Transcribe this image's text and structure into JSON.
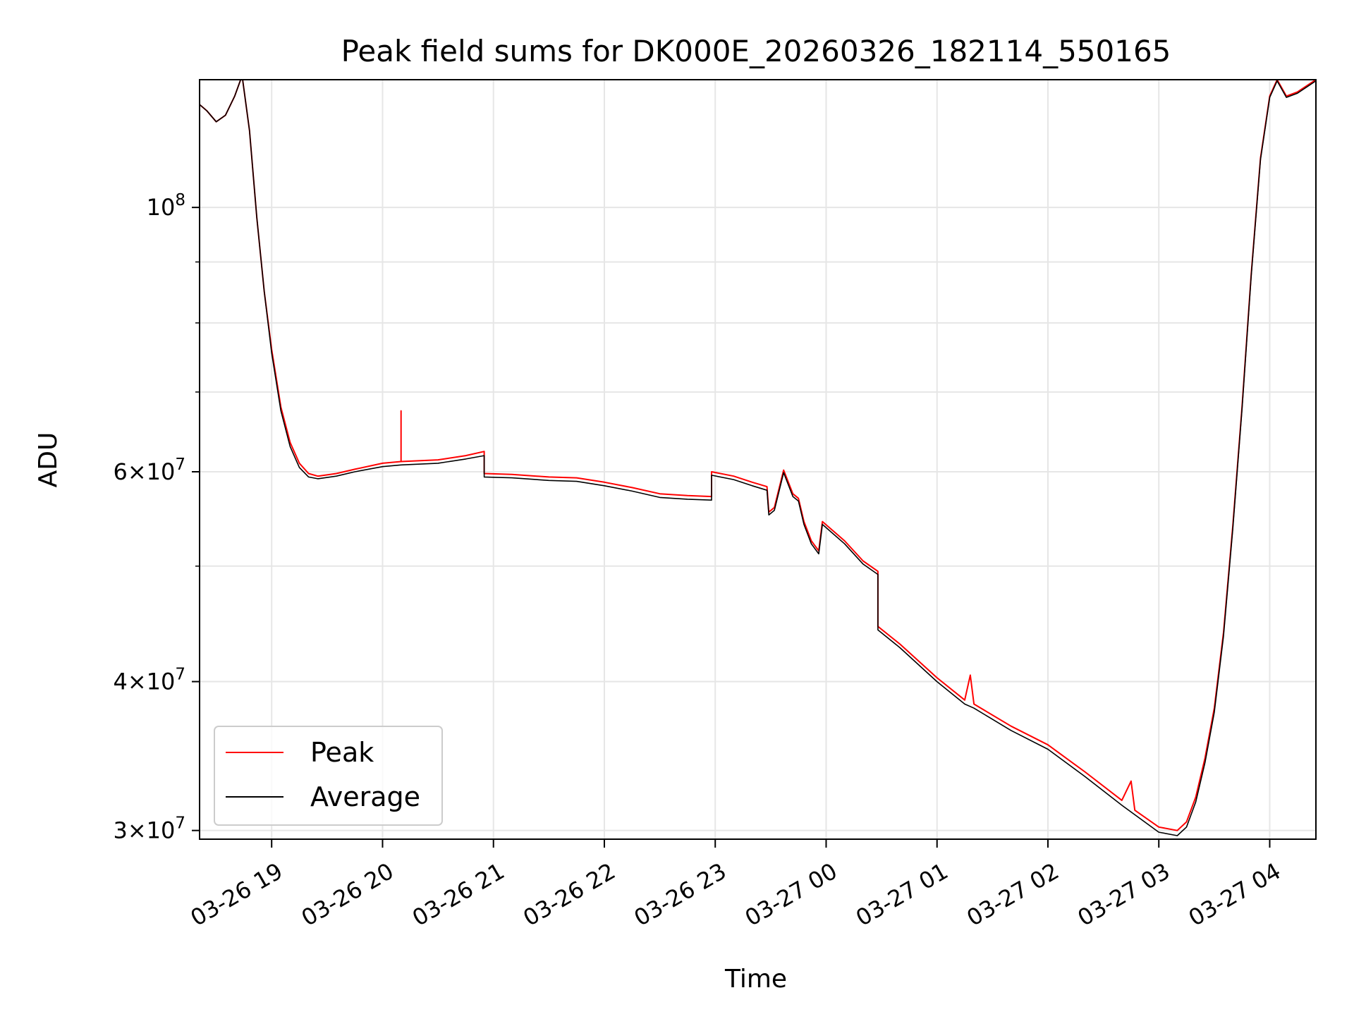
{
  "chart_data": {
    "type": "line",
    "title": "Peak field sums for DK000E_20260326_182114_550165",
    "xlabel": "Time",
    "ylabel": "ADU",
    "yscale": "log",
    "grid": true,
    "legend_position": "lower-left",
    "xlim": [
      "2026-03-26 18:21",
      "2026-03-27 04:25"
    ],
    "ylim": [
      29500000,
      128000000
    ],
    "x_ticks": [
      {
        "value": "2026-03-26 19:00",
        "label": "03-26 19"
      },
      {
        "value": "2026-03-26 20:00",
        "label": "03-26 20"
      },
      {
        "value": "2026-03-26 21:00",
        "label": "03-26 21"
      },
      {
        "value": "2026-03-26 22:00",
        "label": "03-26 22"
      },
      {
        "value": "2026-03-26 23:00",
        "label": "03-26 23"
      },
      {
        "value": "2026-03-27 00:00",
        "label": "03-27 00"
      },
      {
        "value": "2026-03-27 01:00",
        "label": "03-27 01"
      },
      {
        "value": "2026-03-27 02:00",
        "label": "03-27 02"
      },
      {
        "value": "2026-03-27 03:00",
        "label": "03-27 03"
      },
      {
        "value": "2026-03-27 04:00",
        "label": "03-27 04"
      }
    ],
    "y_ticks": [
      {
        "value": 30000000,
        "label_base": "3×10",
        "label_exp": "7"
      },
      {
        "value": 40000000,
        "label_base": "4×10",
        "label_exp": "7"
      },
      {
        "value": 60000000,
        "label_base": "6×10",
        "label_exp": "7"
      },
      {
        "value": 100000000,
        "label_base": "10",
        "label_exp": "8"
      }
    ],
    "y_minor_ticks": [
      50000000,
      70000000,
      80000000,
      90000000
    ],
    "series": [
      {
        "name": "Peak",
        "color": "#ff0000",
        "points": [
          [
            "2026-03-26 18:21",
            122000000
          ],
          [
            "2026-03-26 18:25",
            120500000
          ],
          [
            "2026-03-26 18:30",
            118000000
          ],
          [
            "2026-03-26 18:35",
            119500000
          ],
          [
            "2026-03-26 18:40",
            124000000
          ],
          [
            "2026-03-26 18:44",
            129000000
          ],
          [
            "2026-03-26 18:48",
            116000000
          ],
          [
            "2026-03-26 18:52",
            98000000
          ],
          [
            "2026-03-26 18:56",
            85000000
          ],
          [
            "2026-03-26 19:00",
            76000000
          ],
          [
            "2026-03-26 19:05",
            68000000
          ],
          [
            "2026-03-26 19:10",
            63500000
          ],
          [
            "2026-03-26 19:15",
            61000000
          ],
          [
            "2026-03-26 19:20",
            59800000
          ],
          [
            "2026-03-26 19:25",
            59500000
          ],
          [
            "2026-03-26 19:35",
            59800000
          ],
          [
            "2026-03-26 19:45",
            60300000
          ],
          [
            "2026-03-26 20:00",
            61000000
          ],
          [
            "2026-03-26 20:10",
            61200000
          ],
          [
            "2026-03-26 20:10",
            67500000
          ],
          [
            "2026-03-26 20:10",
            61200000
          ],
          [
            "2026-03-26 20:30",
            61400000
          ],
          [
            "2026-03-26 20:45",
            61900000
          ],
          [
            "2026-03-26 20:55",
            62400000
          ],
          [
            "2026-03-26 20:55",
            59800000
          ],
          [
            "2026-03-26 21:10",
            59700000
          ],
          [
            "2026-03-26 21:30",
            59400000
          ],
          [
            "2026-03-26 21:45",
            59300000
          ],
          [
            "2026-03-26 22:00",
            58800000
          ],
          [
            "2026-03-26 22:15",
            58200000
          ],
          [
            "2026-03-26 22:30",
            57500000
          ],
          [
            "2026-03-26 22:45",
            57300000
          ],
          [
            "2026-03-26 22:58",
            57200000
          ],
          [
            "2026-03-26 22:58",
            60000000
          ],
          [
            "2026-03-26 23:10",
            59500000
          ],
          [
            "2026-03-26 23:20",
            58800000
          ],
          [
            "2026-03-26 23:28",
            58300000
          ],
          [
            "2026-03-26 23:29",
            55500000
          ],
          [
            "2026-03-26 23:32",
            56000000
          ],
          [
            "2026-03-26 23:37",
            60200000
          ],
          [
            "2026-03-26 23:42",
            57500000
          ],
          [
            "2026-03-26 23:45",
            57000000
          ],
          [
            "2026-03-26 23:48",
            54500000
          ],
          [
            "2026-03-26 23:52",
            52500000
          ],
          [
            "2026-03-26 23:56",
            51500000
          ],
          [
            "2026-03-26 23:58",
            54500000
          ],
          [
            "2026-03-27 00:10",
            52500000
          ],
          [
            "2026-03-27 00:20",
            50500000
          ],
          [
            "2026-03-27 00:28",
            49500000
          ],
          [
            "2026-03-27 00:28",
            44500000
          ],
          [
            "2026-03-27 00:40",
            43000000
          ],
          [
            "2026-03-27 01:00",
            40300000
          ],
          [
            "2026-03-27 01:15",
            38600000
          ],
          [
            "2026-03-27 01:18",
            40500000
          ],
          [
            "2026-03-27 01:20",
            38300000
          ],
          [
            "2026-03-27 01:40",
            36700000
          ],
          [
            "2026-03-27 02:00",
            35400000
          ],
          [
            "2026-03-27 02:20",
            33600000
          ],
          [
            "2026-03-27 02:40",
            31800000
          ],
          [
            "2026-03-27 02:45",
            33000000
          ],
          [
            "2026-03-27 02:47",
            31200000
          ],
          [
            "2026-03-27 03:00",
            30200000
          ],
          [
            "2026-03-27 03:10",
            30000000
          ],
          [
            "2026-03-27 03:15",
            30500000
          ],
          [
            "2026-03-27 03:20",
            32000000
          ],
          [
            "2026-03-27 03:25",
            34500000
          ],
          [
            "2026-03-27 03:30",
            38000000
          ],
          [
            "2026-03-27 03:35",
            44000000
          ],
          [
            "2026-03-27 03:40",
            54000000
          ],
          [
            "2026-03-27 03:45",
            68000000
          ],
          [
            "2026-03-27 03:50",
            88000000
          ],
          [
            "2026-03-27 03:55",
            110000000
          ],
          [
            "2026-03-27 04:00",
            124000000
          ],
          [
            "2026-03-27 04:04",
            128000000
          ],
          [
            "2026-03-27 04:09",
            124000000
          ],
          [
            "2026-03-27 04:15",
            125000000
          ],
          [
            "2026-03-27 04:20",
            126500000
          ],
          [
            "2026-03-27 04:25",
            128000000
          ]
        ]
      },
      {
        "name": "Average",
        "color": "#000000",
        "points": [
          [
            "2026-03-26 18:21",
            122000000
          ],
          [
            "2026-03-26 18:25",
            120500000
          ],
          [
            "2026-03-26 18:30",
            118000000
          ],
          [
            "2026-03-26 18:35",
            119500000
          ],
          [
            "2026-03-26 18:40",
            124000000
          ],
          [
            "2026-03-26 18:44",
            129000000
          ],
          [
            "2026-03-26 18:48",
            116000000
          ],
          [
            "2026-03-26 18:52",
            98000000
          ],
          [
            "2026-03-26 18:56",
            85000000
          ],
          [
            "2026-03-26 19:00",
            75500000
          ],
          [
            "2026-03-26 19:05",
            67500000
          ],
          [
            "2026-03-26 19:10",
            63000000
          ],
          [
            "2026-03-26 19:15",
            60500000
          ],
          [
            "2026-03-26 19:20",
            59400000
          ],
          [
            "2026-03-26 19:25",
            59200000
          ],
          [
            "2026-03-26 19:35",
            59500000
          ],
          [
            "2026-03-26 19:45",
            60000000
          ],
          [
            "2026-03-26 20:00",
            60600000
          ],
          [
            "2026-03-26 20:10",
            60800000
          ],
          [
            "2026-03-26 20:30",
            61000000
          ],
          [
            "2026-03-26 20:45",
            61500000
          ],
          [
            "2026-03-26 20:55",
            61900000
          ],
          [
            "2026-03-26 20:55",
            59400000
          ],
          [
            "2026-03-26 21:10",
            59300000
          ],
          [
            "2026-03-26 21:30",
            59000000
          ],
          [
            "2026-03-26 21:45",
            58900000
          ],
          [
            "2026-03-26 22:00",
            58400000
          ],
          [
            "2026-03-26 22:15",
            57800000
          ],
          [
            "2026-03-26 22:30",
            57100000
          ],
          [
            "2026-03-26 22:45",
            56900000
          ],
          [
            "2026-03-26 22:58",
            56800000
          ],
          [
            "2026-03-26 22:58",
            59600000
          ],
          [
            "2026-03-26 23:10",
            59100000
          ],
          [
            "2026-03-26 23:20",
            58400000
          ],
          [
            "2026-03-26 23:28",
            57900000
          ],
          [
            "2026-03-26 23:29",
            55200000
          ],
          [
            "2026-03-26 23:32",
            55700000
          ],
          [
            "2026-03-26 23:37",
            59900000
          ],
          [
            "2026-03-26 23:42",
            57200000
          ],
          [
            "2026-03-26 23:45",
            56700000
          ],
          [
            "2026-03-26 23:48",
            54200000
          ],
          [
            "2026-03-26 23:52",
            52200000
          ],
          [
            "2026-03-26 23:56",
            51200000
          ],
          [
            "2026-03-26 23:58",
            54200000
          ],
          [
            "2026-03-27 00:10",
            52200000
          ],
          [
            "2026-03-27 00:20",
            50200000
          ],
          [
            "2026-03-27 00:28",
            49200000
          ],
          [
            "2026-03-27 00:28",
            44200000
          ],
          [
            "2026-03-27 00:40",
            42700000
          ],
          [
            "2026-03-27 01:00",
            40000000
          ],
          [
            "2026-03-27 01:15",
            38300000
          ],
          [
            "2026-03-27 01:20",
            38000000
          ],
          [
            "2026-03-27 01:40",
            36400000
          ],
          [
            "2026-03-27 02:00",
            35100000
          ],
          [
            "2026-03-27 02:20",
            33300000
          ],
          [
            "2026-03-27 02:40",
            31500000
          ],
          [
            "2026-03-27 03:00",
            29900000
          ],
          [
            "2026-03-27 03:10",
            29700000
          ],
          [
            "2026-03-27 03:15",
            30200000
          ],
          [
            "2026-03-27 03:20",
            31700000
          ],
          [
            "2026-03-27 03:25",
            34200000
          ],
          [
            "2026-03-27 03:30",
            37700000
          ],
          [
            "2026-03-27 03:35",
            43700000
          ],
          [
            "2026-03-27 03:40",
            53700000
          ],
          [
            "2026-03-27 03:45",
            67700000
          ],
          [
            "2026-03-27 03:50",
            87700000
          ],
          [
            "2026-03-27 03:55",
            109700000
          ],
          [
            "2026-03-27 04:00",
            123700000
          ],
          [
            "2026-03-27 04:04",
            127700000
          ],
          [
            "2026-03-27 04:09",
            123700000
          ],
          [
            "2026-03-27 04:15",
            124700000
          ],
          [
            "2026-03-27 04:20",
            126200000
          ],
          [
            "2026-03-27 04:25",
            127700000
          ]
        ]
      }
    ]
  }
}
